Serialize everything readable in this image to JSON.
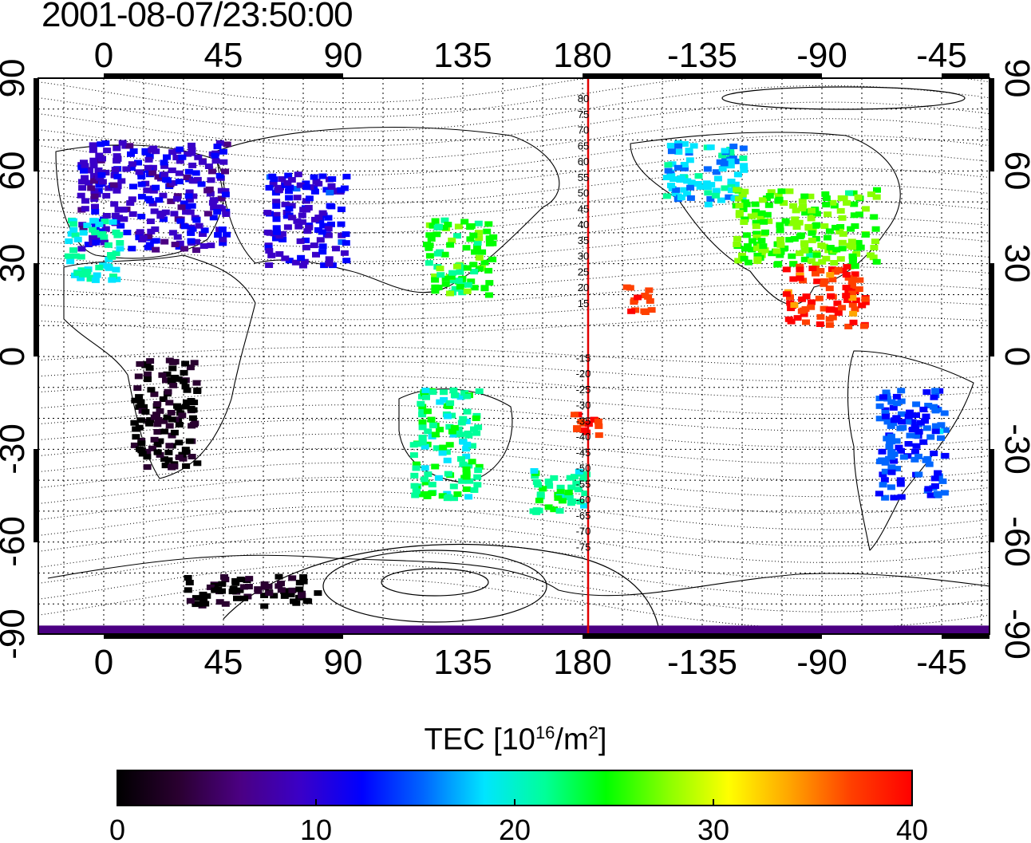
{
  "timestamp": "2001-08-07/23:50:00",
  "map": {
    "top_lon_ticks": [
      "0",
      "45",
      "90",
      "135",
      "180",
      "-135",
      "-90",
      "-45"
    ],
    "bottom_lon_ticks": [
      "0",
      "45",
      "90",
      "135",
      "180",
      "-135",
      "-90",
      "-45"
    ],
    "left_lat_ticks": [
      "90",
      "60",
      "30",
      "0",
      "-30",
      "-60",
      "-90"
    ],
    "right_lat_ticks": [
      "90",
      "60",
      "30",
      "0",
      "-30",
      "-60",
      "-90"
    ],
    "contour_labels": [
      "80",
      "75",
      "70",
      "65",
      "60",
      "55",
      "50",
      "45",
      "40",
      "35",
      "30",
      "25",
      "20",
      "15",
      "-15",
      "-20",
      "-25",
      "-30",
      "-35",
      "-40",
      "-45",
      "-50",
      "-55",
      "-60",
      "-65",
      "-70",
      "-75"
    ],
    "line_color": "#e00000"
  },
  "colorbar": {
    "title_prefix": "TEC  [10",
    "title_exp1": "16",
    "title_mid": "/m",
    "title_exp2": "2",
    "title_suffix": "]",
    "ticks": [
      "0",
      "10",
      "20",
      "30",
      "40"
    ],
    "range": [
      0,
      40
    ],
    "colors": [
      "#000000",
      "#2a0030",
      "#4b0082",
      "#3a00c8",
      "#0000ff",
      "#0066ff",
      "#00e5ff",
      "#00ff99",
      "#00ff00",
      "#88ff00",
      "#ffff00",
      "#ffa500",
      "#ff4000",
      "#ff0000"
    ]
  },
  "chart_data": {
    "type": "heatmap",
    "title": "2001-08-07/23:50:00",
    "x_label": "",
    "y_label": "",
    "color_label": "TEC [10^16/m^2]",
    "color_range": [
      0,
      40
    ],
    "x_range": [
      -20,
      340
    ],
    "y_range": [
      -90,
      90
    ],
    "regions": [
      {
        "lon": [
          -10,
          45
        ],
        "lat": [
          35,
          70
        ],
        "tec": 10
      },
      {
        "lon": [
          -15,
          5
        ],
        "lat": [
          25,
          45
        ],
        "tec": 20
      },
      {
        "lon": [
          60,
          90
        ],
        "lat": [
          30,
          60
        ],
        "tec": 11
      },
      {
        "lon": [
          120,
          145
        ],
        "lat": [
          20,
          45
        ],
        "tec": 24
      },
      {
        "lon": [
          115,
          140
        ],
        "lat": [
          -45,
          -10
        ],
        "tec": 22
      },
      {
        "lon": [
          160,
          180
        ],
        "lat": [
          -50,
          -35
        ],
        "tec": 22
      },
      {
        "lon": [
          175,
          185
        ],
        "lat": [
          -25,
          -15
        ],
        "tec": 38
      },
      {
        "lon": [
          195,
          205
        ],
        "lat": [
          15,
          25
        ],
        "tec": 38
      },
      {
        "lon": [
          -150,
          -120
        ],
        "lat": [
          50,
          70
        ],
        "tec": 18
      },
      {
        "lon": [
          -125,
          -70
        ],
        "lat": [
          30,
          55
        ],
        "tec": 26
      },
      {
        "lon": [
          -105,
          -75
        ],
        "lat": [
          10,
          30
        ],
        "tec": 38
      },
      {
        "lon": [
          -70,
          -45
        ],
        "lat": [
          -45,
          -10
        ],
        "tec": 14
      },
      {
        "lon": [
          10,
          35
        ],
        "lat": [
          -35,
          0
        ],
        "tec": 1
      },
      {
        "lon": [
          30,
          80
        ],
        "lat": [
          -80,
          -70
        ],
        "tec": 1
      },
      {
        "lon": [
          -180,
          180
        ],
        "lat": [
          -90,
          -87
        ],
        "tec": 5
      }
    ]
  }
}
